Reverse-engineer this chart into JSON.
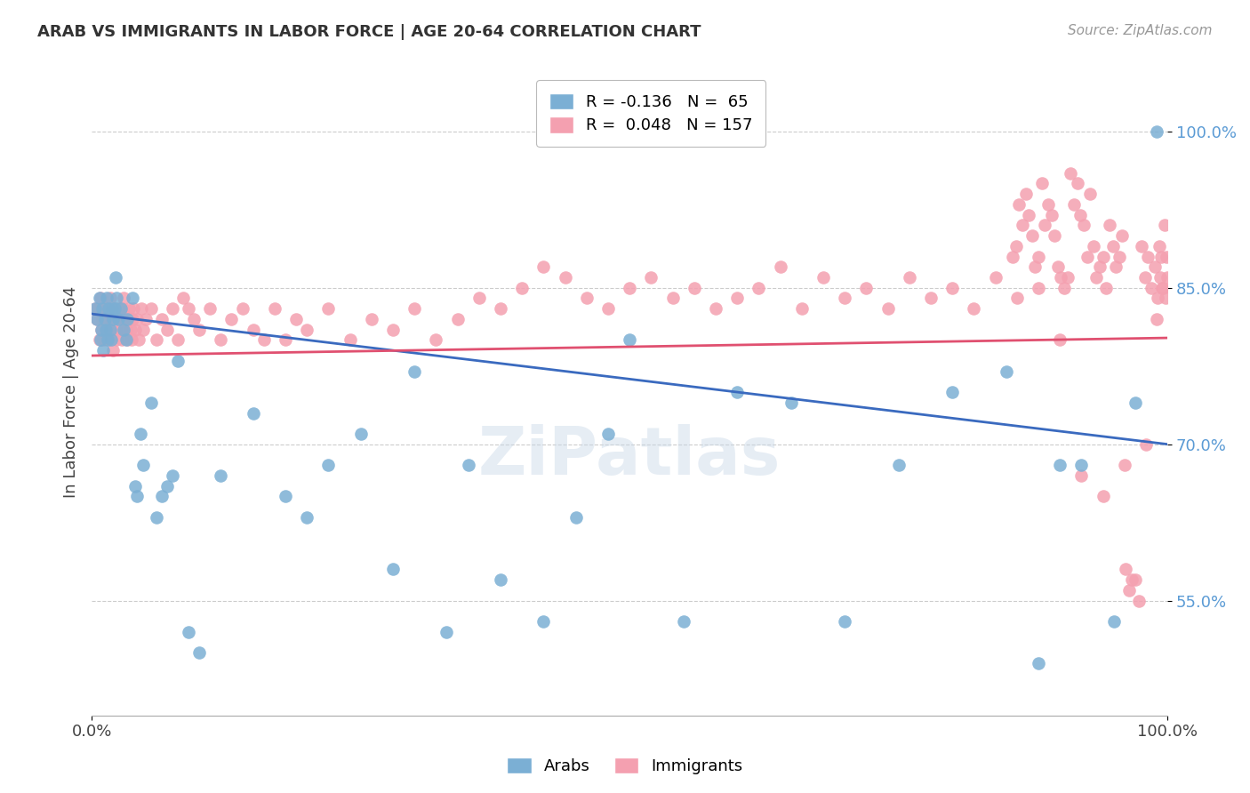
{
  "title": "ARAB VS IMMIGRANTS IN LABOR FORCE | AGE 20-64 CORRELATION CHART",
  "source_text": "Source: ZipAtlas.com",
  "ylabel": "In Labor Force | Age 20-64",
  "xlim": [
    0.0,
    1.0
  ],
  "ylim": [
    0.44,
    1.06
  ],
  "yticks": [
    0.55,
    0.7,
    0.85,
    1.0
  ],
  "ytick_labels": [
    "55.0%",
    "70.0%",
    "85.0%",
    "100.0%"
  ],
  "xtick_labels": [
    "0.0%",
    "100.0%"
  ],
  "arab_color": "#7bafd4",
  "immigrant_color": "#f4a0b0",
  "arab_line_color": "#3a6abf",
  "immigrant_line_color": "#e05070",
  "watermark": "ZiPatlas",
  "arab_line_start_y": 0.825,
  "arab_line_end_y": 0.7,
  "immigrant_line_start_y": 0.785,
  "immigrant_line_end_y": 0.802,
  "arab_x": [
    0.003,
    0.005,
    0.007,
    0.008,
    0.009,
    0.01,
    0.011,
    0.012,
    0.013,
    0.014,
    0.015,
    0.016,
    0.017,
    0.018,
    0.019,
    0.02,
    0.021,
    0.022,
    0.023,
    0.025,
    0.027,
    0.03,
    0.032,
    0.033,
    0.038,
    0.04,
    0.042,
    0.045,
    0.048,
    0.055,
    0.06,
    0.065,
    0.07,
    0.075,
    0.08,
    0.09,
    0.1,
    0.12,
    0.15,
    0.18,
    0.2,
    0.22,
    0.25,
    0.28,
    0.3,
    0.33,
    0.35,
    0.38,
    0.42,
    0.45,
    0.48,
    0.5,
    0.55,
    0.6,
    0.65,
    0.7,
    0.75,
    0.8,
    0.85,
    0.88,
    0.9,
    0.92,
    0.95,
    0.97,
    0.99
  ],
  "arab_y": [
    0.83,
    0.82,
    0.84,
    0.8,
    0.81,
    0.83,
    0.79,
    0.82,
    0.81,
    0.84,
    0.8,
    0.83,
    0.81,
    0.8,
    0.83,
    0.82,
    0.83,
    0.86,
    0.84,
    0.82,
    0.83,
    0.81,
    0.8,
    0.82,
    0.84,
    0.66,
    0.65,
    0.71,
    0.68,
    0.74,
    0.63,
    0.65,
    0.66,
    0.67,
    0.78,
    0.52,
    0.5,
    0.67,
    0.73,
    0.65,
    0.63,
    0.68,
    0.71,
    0.58,
    0.77,
    0.52,
    0.68,
    0.57,
    0.53,
    0.63,
    0.71,
    0.8,
    0.53,
    0.75,
    0.74,
    0.53,
    0.68,
    0.75,
    0.77,
    0.49,
    0.68,
    0.68,
    0.53,
    0.74,
    1.0
  ],
  "immigrant_x": [
    0.003,
    0.005,
    0.006,
    0.007,
    0.008,
    0.009,
    0.01,
    0.011,
    0.012,
    0.013,
    0.014,
    0.015,
    0.016,
    0.017,
    0.018,
    0.019,
    0.02,
    0.021,
    0.022,
    0.023,
    0.024,
    0.025,
    0.026,
    0.027,
    0.028,
    0.029,
    0.03,
    0.031,
    0.032,
    0.033,
    0.034,
    0.035,
    0.036,
    0.037,
    0.038,
    0.039,
    0.04,
    0.042,
    0.044,
    0.046,
    0.048,
    0.05,
    0.055,
    0.06,
    0.065,
    0.07,
    0.075,
    0.08,
    0.085,
    0.09,
    0.095,
    0.1,
    0.11,
    0.12,
    0.13,
    0.14,
    0.15,
    0.16,
    0.17,
    0.18,
    0.19,
    0.2,
    0.22,
    0.24,
    0.26,
    0.28,
    0.3,
    0.32,
    0.34,
    0.36,
    0.38,
    0.4,
    0.42,
    0.44,
    0.46,
    0.48,
    0.5,
    0.52,
    0.54,
    0.56,
    0.58,
    0.6,
    0.62,
    0.64,
    0.66,
    0.68,
    0.7,
    0.72,
    0.74,
    0.76,
    0.78,
    0.8,
    0.82,
    0.84,
    0.86,
    0.88,
    0.9,
    0.92,
    0.94,
    0.96,
    0.98,
    0.99,
    0.995,
    0.998,
    1.0,
    0.999,
    0.997,
    0.996,
    0.994,
    0.993,
    0.992,
    0.991,
    0.988,
    0.985,
    0.982,
    0.979,
    0.976,
    0.973,
    0.97,
    0.967,
    0.964,
    0.961,
    0.958,
    0.955,
    0.952,
    0.949,
    0.946,
    0.943,
    0.94,
    0.937,
    0.934,
    0.931,
    0.928,
    0.925,
    0.922,
    0.919,
    0.916,
    0.913,
    0.91,
    0.907,
    0.904,
    0.901,
    0.898,
    0.895,
    0.892,
    0.889,
    0.886,
    0.883,
    0.88,
    0.877,
    0.874,
    0.871,
    0.868,
    0.865,
    0.862,
    0.859,
    0.856
  ],
  "immigrant_y": [
    0.83,
    0.82,
    0.83,
    0.8,
    0.84,
    0.81,
    0.82,
    0.8,
    0.83,
    0.82,
    0.81,
    0.83,
    0.8,
    0.84,
    0.81,
    0.82,
    0.79,
    0.83,
    0.81,
    0.8,
    0.82,
    0.83,
    0.82,
    0.81,
    0.8,
    0.83,
    0.84,
    0.82,
    0.81,
    0.8,
    0.82,
    0.83,
    0.81,
    0.8,
    0.82,
    0.83,
    0.81,
    0.82,
    0.8,
    0.83,
    0.81,
    0.82,
    0.83,
    0.8,
    0.82,
    0.81,
    0.83,
    0.8,
    0.84,
    0.83,
    0.82,
    0.81,
    0.83,
    0.8,
    0.82,
    0.83,
    0.81,
    0.8,
    0.83,
    0.8,
    0.82,
    0.81,
    0.83,
    0.8,
    0.82,
    0.81,
    0.83,
    0.8,
    0.82,
    0.84,
    0.83,
    0.85,
    0.87,
    0.86,
    0.84,
    0.83,
    0.85,
    0.86,
    0.84,
    0.85,
    0.83,
    0.84,
    0.85,
    0.87,
    0.83,
    0.86,
    0.84,
    0.85,
    0.83,
    0.86,
    0.84,
    0.85,
    0.83,
    0.86,
    0.84,
    0.85,
    0.8,
    0.67,
    0.65,
    0.68,
    0.7,
    0.82,
    0.85,
    0.84,
    0.86,
    0.88,
    0.91,
    0.85,
    0.88,
    0.86,
    0.89,
    0.84,
    0.87,
    0.85,
    0.88,
    0.86,
    0.89,
    0.55,
    0.57,
    0.57,
    0.56,
    0.58,
    0.9,
    0.88,
    0.87,
    0.89,
    0.91,
    0.85,
    0.88,
    0.87,
    0.86,
    0.89,
    0.94,
    0.88,
    0.91,
    0.92,
    0.95,
    0.93,
    0.96,
    0.86,
    0.85,
    0.86,
    0.87,
    0.9,
    0.92,
    0.93,
    0.91,
    0.95,
    0.88,
    0.87,
    0.9,
    0.92,
    0.94,
    0.91,
    0.93,
    0.89,
    0.88
  ]
}
